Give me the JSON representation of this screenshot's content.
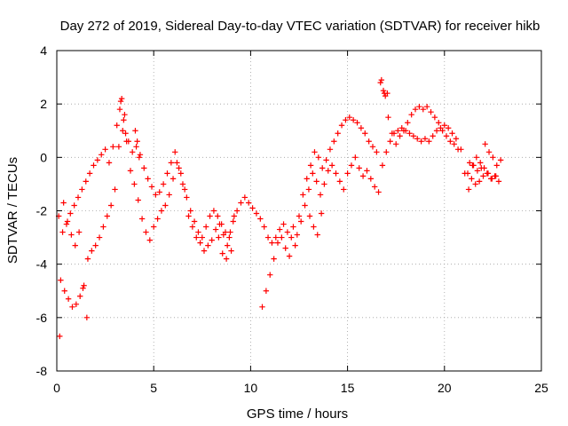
{
  "chart_data": {
    "type": "scatter",
    "title": "Day 272 of 2019, Sidereal Day-to-day VTEC variation (SDTVAR) for receiver hikb",
    "xlabel": "GPS time / hours",
    "ylabel": "SDTVAR / TECUs",
    "xlim": [
      0,
      25
    ],
    "ylim": [
      -8,
      4
    ],
    "xticks": [
      0,
      5,
      10,
      15,
      20,
      25
    ],
    "yticks": [
      -8,
      -6,
      -4,
      -2,
      0,
      2,
      4
    ],
    "grid": true,
    "marker": "+",
    "color": "#ff0000",
    "series": [
      {
        "name": "SDTVAR",
        "x": [
          0.1,
          0.3,
          0.5,
          0.7,
          0.9,
          1.1,
          1.3,
          1.5,
          1.7,
          1.9,
          2.1,
          2.3,
          2.5,
          2.7,
          2.9,
          3.1,
          3.3,
          3.5,
          3.7,
          3.9,
          4.1,
          4.3,
          4.5,
          4.7,
          4.9,
          5.1,
          5.3,
          5.5,
          5.7,
          5.9,
          6.1,
          6.3,
          6.5,
          6.7,
          6.9,
          7.1,
          7.3,
          7.5,
          7.7,
          7.9,
          8.1,
          8.3,
          8.5,
          8.7,
          8.9,
          9.1,
          9.3,
          9.5,
          9.7,
          9.9,
          10.1,
          10.3,
          10.5,
          10.7,
          10.9,
          11.1,
          11.3,
          11.5,
          11.7,
          11.9,
          12.1,
          12.3,
          12.5,
          12.7,
          12.9,
          13.1,
          13.3,
          13.5,
          13.7,
          13.9,
          14.1,
          14.3,
          14.5,
          14.7,
          14.9,
          15.1,
          15.3,
          15.5,
          15.7,
          15.9,
          16.1,
          16.3,
          16.5,
          16.7,
          16.9,
          17.1,
          17.3,
          17.5,
          17.7,
          17.9,
          18.1,
          18.3,
          18.5,
          18.7,
          18.9,
          19.1,
          19.3,
          19.5,
          19.7,
          19.9,
          20.1,
          20.3,
          20.5,
          20.7,
          21.3,
          21.5,
          21.7,
          21.9,
          22.1,
          22.3,
          22.5,
          22.7,
          22.9,
          0.2,
          0.4,
          0.6,
          0.8,
          1.0,
          1.2,
          1.4,
          1.6,
          1.8,
          2.0,
          2.2,
          2.4,
          2.6,
          2.8,
          3.0,
          3.2,
          3.4,
          3.6,
          3.8,
          4.0,
          4.2,
          4.4,
          4.6,
          4.8,
          5.0,
          5.2,
          5.4,
          5.6,
          5.8,
          6.0,
          6.2,
          6.4,
          6.6,
          6.8,
          7.0,
          7.2,
          7.4,
          7.6,
          7.8,
          8.0,
          8.2,
          8.4,
          8.6,
          8.8,
          9.0,
          10.6,
          10.8,
          11.0,
          11.2,
          11.4,
          11.6,
          11.8,
          12.0,
          12.2,
          12.4,
          12.6,
          12.8,
          13.0,
          13.2,
          13.4,
          13.6,
          13.8,
          14.0,
          14.2,
          14.4,
          14.6,
          14.8,
          15.0,
          15.2,
          15.4,
          15.6,
          15.8,
          16.0,
          16.2,
          16.4,
          16.6,
          16.8,
          17.0,
          17.2,
          17.4,
          17.6,
          17.8,
          18.0,
          18.2,
          18.4,
          18.6,
          18.8,
          19.0,
          19.2,
          19.4,
          19.6,
          19.8,
          20.0,
          20.2,
          20.4,
          20.6,
          21.2,
          21.4,
          21.6,
          21.8,
          22.0,
          22.2,
          22.4,
          22.6,
          22.8,
          0.15,
          0.35,
          0.55,
          0.75,
          0.95,
          1.15,
          1.35,
          1.55,
          3.25,
          3.35,
          3.45,
          3.55,
          4.05,
          4.15,
          4.25,
          8.35,
          8.55,
          8.75,
          8.95,
          9.15,
          13.05,
          13.25,
          13.45,
          13.65,
          16.75,
          16.85,
          16.95,
          17.05,
          20.85,
          21.05,
          21.25,
          21.45,
          21.65,
          21.85,
          22.05,
          22.25,
          22.45,
          22.65
        ],
        "y": [
          -2.2,
          -2.8,
          -2.5,
          -2.1,
          -1.8,
          -1.5,
          -1.2,
          -0.9,
          -0.6,
          -0.3,
          -0.1,
          0.1,
          0.3,
          -0.2,
          0.4,
          1.2,
          2.1,
          1.6,
          0.6,
          0.2,
          0.4,
          0.1,
          -0.4,
          -0.8,
          -1.1,
          -1.4,
          -1.3,
          -1.0,
          -0.6,
          -0.2,
          0.2,
          -0.4,
          -1.0,
          -1.5,
          -2.0,
          -2.4,
          -2.8,
          -3.0,
          -2.6,
          -2.2,
          -2.0,
          -2.2,
          -2.5,
          -2.8,
          -3.0,
          -2.4,
          -2.0,
          -1.7,
          -1.5,
          -1.7,
          -1.9,
          -2.1,
          -2.3,
          -2.6,
          -3.0,
          -3.2,
          -3.0,
          -2.7,
          -2.5,
          -2.8,
          -3.0,
          -3.3,
          -2.2,
          -1.4,
          -0.8,
          -0.3,
          0.2,
          0.0,
          -0.4,
          -0.1,
          0.3,
          0.6,
          0.9,
          1.2,
          1.4,
          1.5,
          1.4,
          1.3,
          1.1,
          0.9,
          0.6,
          0.4,
          0.2,
          2.8,
          2.4,
          1.5,
          0.9,
          0.5,
          0.8,
          1.0,
          1.3,
          1.6,
          1.8,
          1.9,
          1.8,
          1.9,
          1.7,
          1.5,
          1.3,
          1.0,
          0.8,
          0.6,
          0.5,
          0.3,
          -0.2,
          -0.3,
          -0.5,
          -0.4,
          0.5,
          0.2,
          0.0,
          -0.3,
          -0.1,
          -4.6,
          -5.0,
          -5.3,
          -5.6,
          -5.5,
          -5.2,
          -4.8,
          -3.8,
          -3.5,
          -3.3,
          -3.0,
          -2.6,
          -2.2,
          -1.8,
          -1.2,
          0.4,
          1.0,
          0.6,
          -0.5,
          -1.0,
          -1.6,
          -2.3,
          -2.8,
          -3.1,
          -2.6,
          -2.3,
          -2.0,
          -1.8,
          -1.4,
          -0.8,
          -0.2,
          -0.6,
          -1.2,
          -2.2,
          -2.6,
          -3.0,
          -3.2,
          -3.5,
          -3.3,
          -3.1,
          -2.7,
          -2.5,
          -2.9,
          -3.3,
          -3.5,
          -5.6,
          -5.0,
          -4.4,
          -3.8,
          -3.2,
          -3.0,
          -3.4,
          -3.7,
          -2.6,
          -2.9,
          -2.4,
          -1.8,
          -1.2,
          -0.6,
          -0.9,
          -1.4,
          -1.0,
          -0.5,
          -0.3,
          -0.6,
          -0.9,
          -1.2,
          -0.6,
          -0.3,
          0.0,
          -0.4,
          -0.7,
          -0.5,
          -0.8,
          -1.1,
          -1.3,
          -0.3,
          0.2,
          0.6,
          0.9,
          1.0,
          1.1,
          1.0,
          0.9,
          0.8,
          0.7,
          0.6,
          0.7,
          0.6,
          0.8,
          1.0,
          1.1,
          1.2,
          1.1,
          0.9,
          0.7,
          -0.6,
          -0.8,
          -1.0,
          -0.9,
          -0.7,
          -0.6,
          -0.8,
          -0.7,
          -0.9,
          -6.7,
          -1.7,
          -2.4,
          -2.9,
          -3.3,
          -2.8,
          -4.9,
          -6.0,
          1.8,
          2.2,
          1.4,
          0.9,
          1.0,
          0.6,
          0.0,
          -3.0,
          -3.6,
          -3.8,
          -2.8,
          -2.2,
          -2.2,
          -2.6,
          -2.9,
          -2.1,
          2.9,
          2.5,
          2.3,
          2.4,
          0.3,
          -0.6,
          -1.2,
          -0.3,
          0.0,
          -0.2,
          -0.4,
          -0.6,
          -0.8,
          -0.7
        ]
      }
    ]
  }
}
